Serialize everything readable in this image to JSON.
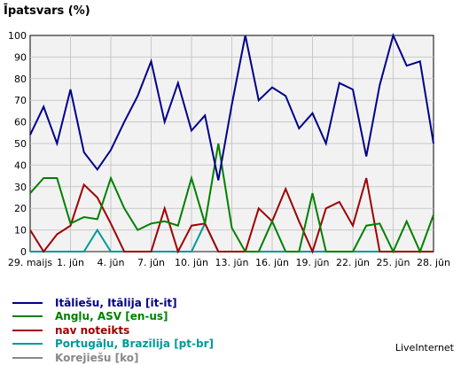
{
  "chart_data": {
    "type": "line",
    "ylabel": "Īpatsvars (%)",
    "ylim": [
      0,
      100
    ],
    "yticks": [
      0,
      10,
      20,
      30,
      40,
      50,
      60,
      70,
      80,
      90,
      100
    ],
    "grid": true,
    "legend_position": "bottom-left",
    "x": [
      "29. maijs",
      "30",
      "31",
      "1. jūn",
      "2",
      "3",
      "4. jūn",
      "5",
      "6",
      "7. jūn",
      "8",
      "9",
      "10. jūn",
      "11",
      "12",
      "13. jūn",
      "14",
      "15",
      "16. jūn",
      "17",
      "18",
      "19. jūn",
      "20",
      "21",
      "22. jūn",
      "23",
      "24",
      "25. jūn",
      "26",
      "27",
      "28. jūn"
    ],
    "xtick_labels": [
      "29. maijs",
      "1. jūn",
      "4. jūn",
      "7. jūn",
      "10. jūn",
      "13. jūn",
      "16. jūn",
      "19. jūn",
      "22. jūn",
      "25. jūn",
      "28. jūn"
    ],
    "xtick_indices": [
      0,
      3,
      6,
      9,
      12,
      15,
      18,
      21,
      24,
      27,
      30
    ],
    "series": [
      {
        "name": "Itāliešu, Itālija [it-it]",
        "color": "#00008b",
        "values": [
          54,
          67,
          50,
          75,
          46,
          38,
          47,
          60,
          72,
          88,
          60,
          78,
          56,
          63,
          33,
          68,
          100,
          70,
          76,
          72,
          57,
          64,
          50,
          78,
          75,
          44,
          77,
          100,
          86,
          88,
          50
        ]
      },
      {
        "name": "Angļu, ASV [en-us]",
        "color": "#008000",
        "values": [
          27,
          34,
          34,
          13,
          16,
          15,
          34,
          20,
          10,
          13,
          14,
          12,
          34,
          13,
          50,
          11,
          0,
          0,
          14,
          0,
          0,
          27,
          0,
          0,
          0,
          12,
          13,
          0,
          14,
          0,
          17
        ]
      },
      {
        "name": "nav noteikts",
        "color": "#a00000",
        "values": [
          10,
          0,
          8,
          12,
          31,
          25,
          13,
          0,
          0,
          0,
          20,
          0,
          12,
          13,
          0,
          0,
          0,
          20,
          14,
          29,
          14,
          0,
          20,
          23,
          12,
          34,
          0,
          0,
          0,
          0,
          0
        ]
      },
      {
        "name": "Portugāļu, Brazīlija [pt-br]",
        "color": "#009999",
        "values": [
          0,
          0,
          0,
          0,
          0,
          10,
          0,
          0,
          0,
          0,
          0,
          0,
          0,
          13,
          0,
          0,
          0,
          0,
          0,
          0,
          0,
          0,
          0,
          0,
          0,
          0,
          0,
          0,
          0,
          0,
          0
        ]
      },
      {
        "name": "Korejiešu [ko]",
        "color": "#888888",
        "values": [
          0,
          0,
          0,
          0,
          0,
          0,
          0,
          0,
          0,
          0,
          0,
          0,
          0,
          0,
          0,
          0,
          0,
          0,
          0,
          0,
          0,
          0,
          0,
          0,
          0,
          0,
          0,
          0,
          0,
          0,
          0
        ]
      }
    ]
  },
  "credit": "LiveInternet"
}
